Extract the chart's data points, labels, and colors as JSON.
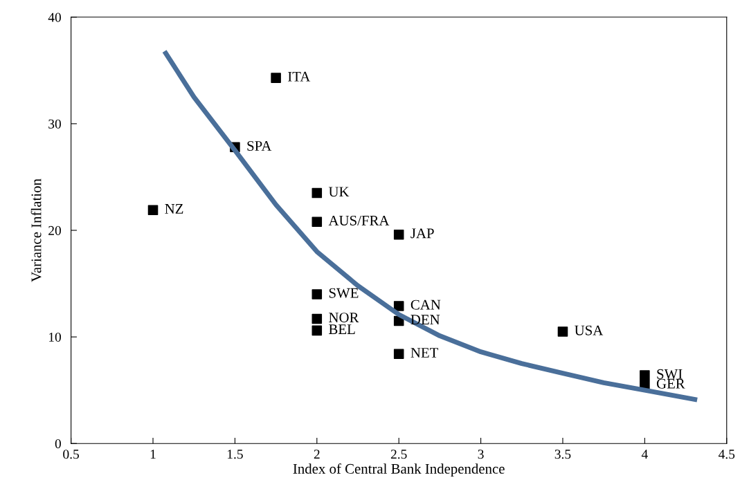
{
  "chart_data": {
    "type": "scatter",
    "xlabel": "Index of Central Bank Independence",
    "ylabel": "Variance Inflation",
    "xlim": [
      0.5,
      4.5
    ],
    "ylim": [
      0,
      40
    ],
    "xticks": [
      0.5,
      1,
      1.5,
      2,
      2.5,
      3,
      3.5,
      4,
      4.5
    ],
    "yticks": [
      0,
      10,
      20,
      30,
      40
    ],
    "grid": false,
    "legend": false,
    "series": [
      {
        "color": "#000000",
        "marker": "square",
        "x": [
          1.75,
          1.5,
          1,
          2,
          2,
          2.5,
          2,
          2,
          2,
          2.5,
          2.5,
          2.5,
          3.5,
          4,
          4
        ],
        "values": [
          34.3,
          27.8,
          21.9,
          23.5,
          20.8,
          19.6,
          14.0,
          11.7,
          10.6,
          12.9,
          11.5,
          8.4,
          10.5,
          6.4,
          5.5
        ]
      },
      {
        "type": "line",
        "color": "#4a6f9a",
        "marker": "none",
        "line_style": "solid",
        "x": [
          1.07,
          1.25,
          1.5,
          1.75,
          2,
          2.25,
          2.5,
          2.75,
          3,
          3.25,
          3.5,
          3.75,
          4,
          4.32
        ],
        "values": [
          36.8,
          32.5,
          27.5,
          22.4,
          18.0,
          14.8,
          12.1,
          10.1,
          8.6,
          7.5,
          6.6,
          5.7,
          5.0,
          4.1
        ]
      }
    ],
    "annotations": [
      {
        "text": "ITA",
        "x": 1.75,
        "y": 34.3
      },
      {
        "text": "SPA",
        "x": 1.5,
        "y": 27.8
      },
      {
        "text": "NZ",
        "x": 1,
        "y": 21.9
      },
      {
        "text": "UK",
        "x": 2,
        "y": 23.5
      },
      {
        "text": "AUS/FRA",
        "x": 2,
        "y": 20.8
      },
      {
        "text": "JAP",
        "x": 2.5,
        "y": 19.6
      },
      {
        "text": "SWE",
        "x": 2,
        "y": 14.0
      },
      {
        "text": "NOR",
        "x": 2,
        "y": 11.7
      },
      {
        "text": "BEL",
        "x": 2,
        "y": 10.6
      },
      {
        "text": "CAN",
        "x": 2.5,
        "y": 12.9
      },
      {
        "text": "DEN",
        "x": 2.5,
        "y": 11.5
      },
      {
        "text": "NET",
        "x": 2.5,
        "y": 8.4
      },
      {
        "text": "USA",
        "x": 3.5,
        "y": 10.5
      },
      {
        "text": "SWI",
        "x": 4,
        "y": 6.4
      },
      {
        "text": "GER",
        "x": 4,
        "y": 5.5
      }
    ]
  }
}
